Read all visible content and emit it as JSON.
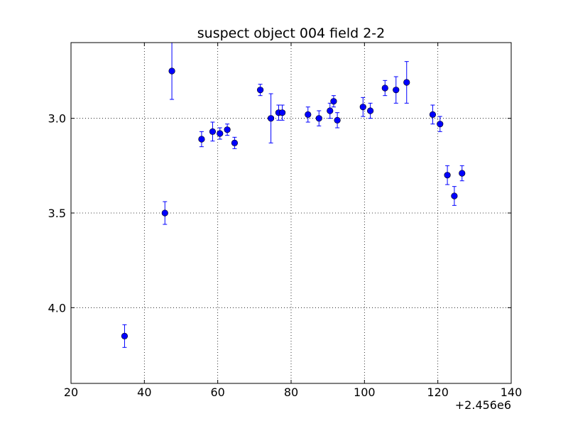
{
  "chart_data": {
    "type": "scatter",
    "title": "suspect object 004 field 2-2",
    "xlabel": "",
    "ylabel": "",
    "x_offset_label": "+2.456e6",
    "xlim": [
      20,
      140
    ],
    "ylim": [
      4.4,
      2.6
    ],
    "y_inverted": true,
    "grid": true,
    "x_ticks": [
      20,
      40,
      60,
      80,
      100,
      120,
      140
    ],
    "y_ticks": [
      3.0,
      3.5,
      4.0
    ],
    "x_tick_labels": [
      "20",
      "40",
      "60",
      "80",
      "100",
      "120",
      "140"
    ],
    "y_tick_labels": [
      "3.0",
      "3.5",
      "4.0"
    ],
    "marker_color": "#0000ff",
    "series": [
      {
        "points": [
          {
            "x": 34.6,
            "y": 4.15,
            "err": 0.06
          },
          {
            "x": 45.6,
            "y": 3.5,
            "err": 0.06
          },
          {
            "x": 47.5,
            "y": 2.75,
            "err": 0.15
          },
          {
            "x": 55.6,
            "y": 3.11,
            "err": 0.04
          },
          {
            "x": 58.6,
            "y": 3.07,
            "err": 0.05
          },
          {
            "x": 60.6,
            "y": 3.08,
            "err": 0.03
          },
          {
            "x": 62.6,
            "y": 3.06,
            "err": 0.03
          },
          {
            "x": 64.6,
            "y": 3.13,
            "err": 0.03
          },
          {
            "x": 71.6,
            "y": 2.85,
            "err": 0.03
          },
          {
            "x": 74.5,
            "y": 3.0,
            "err": 0.13
          },
          {
            "x": 76.6,
            "y": 2.97,
            "err": 0.04
          },
          {
            "x": 77.6,
            "y": 2.97,
            "err": 0.04
          },
          {
            "x": 84.6,
            "y": 2.98,
            "err": 0.04
          },
          {
            "x": 87.6,
            "y": 3.0,
            "err": 0.04
          },
          {
            "x": 90.6,
            "y": 2.96,
            "err": 0.04
          },
          {
            "x": 91.6,
            "y": 2.91,
            "err": 0.03
          },
          {
            "x": 92.6,
            "y": 3.01,
            "err": 0.04
          },
          {
            "x": 99.6,
            "y": 2.94,
            "err": 0.05
          },
          {
            "x": 101.6,
            "y": 2.96,
            "err": 0.04
          },
          {
            "x": 105.6,
            "y": 2.84,
            "err": 0.04
          },
          {
            "x": 108.6,
            "y": 2.85,
            "err": 0.07
          },
          {
            "x": 111.5,
            "y": 2.81,
            "err": 0.11
          },
          {
            "x": 118.6,
            "y": 2.98,
            "err": 0.05
          },
          {
            "x": 120.6,
            "y": 3.03,
            "err": 0.04
          },
          {
            "x": 122.6,
            "y": 3.3,
            "err": 0.05
          },
          {
            "x": 124.5,
            "y": 3.41,
            "err": 0.05
          },
          {
            "x": 126.6,
            "y": 3.29,
            "err": 0.04
          }
        ]
      }
    ]
  }
}
